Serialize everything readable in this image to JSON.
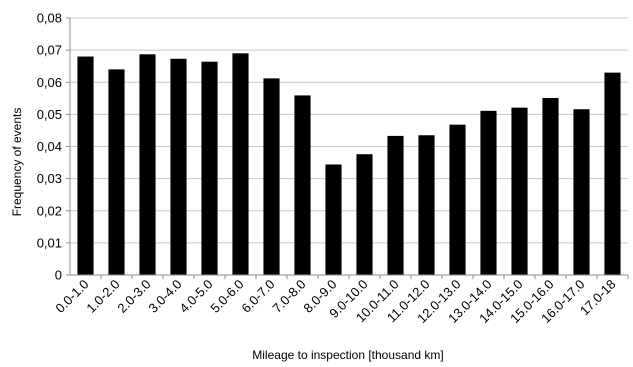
{
  "chart_data": {
    "type": "bar",
    "xlabel": "Mileage to inspection [thousand km]",
    "ylabel": "Frequency of events",
    "ylim": [
      0,
      0.08
    ],
    "y_ticks": [
      "0",
      "0,01",
      "0,02",
      "0,03",
      "0,04",
      "0,05",
      "0,06",
      "0,07",
      "0,08"
    ],
    "grid": "horizontal",
    "categories": [
      "0.0-1.0",
      "1.0-2.0",
      "2.0-3.0",
      "3.0-4.0",
      "4.0-5.0",
      "5.0-6.0",
      "6.0-7.0",
      "7.0-8.0",
      "8.0-9.0",
      "9.0-10.0",
      "10.0-11.0",
      "11.0-12.0",
      "12.0-13.0",
      "13.0-14.0",
      "14.0-15.0",
      "15.0-16.0",
      "16.0-17.0",
      "17.0-18"
    ],
    "values": [
      0.068,
      0.064,
      0.0687,
      0.0673,
      0.0664,
      0.069,
      0.0612,
      0.0559,
      0.0344,
      0.0376,
      0.0433,
      0.0435,
      0.0468,
      0.0511,
      0.0521,
      0.0551,
      0.0516,
      0.063
    ],
    "bar_color": "#000000",
    "grid_color": "#c8c8c8"
  }
}
